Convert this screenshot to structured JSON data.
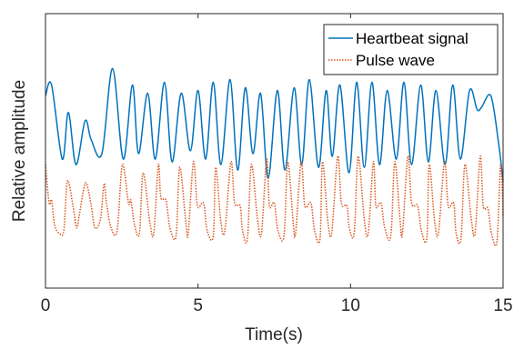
{
  "chart_data": {
    "type": "line",
    "xlabel": "Time(s)",
    "ylabel": "Relative amplitude",
    "xlim": [
      0,
      15
    ],
    "ylim": [
      0,
      1
    ],
    "xticks": [
      0,
      5,
      10,
      15
    ],
    "xtick_labels": [
      "0",
      "5",
      "10",
      "15"
    ],
    "grid": false,
    "legend_position": "top-right",
    "series": [
      {
        "name": "Heartbeat signal",
        "color": "#0072BD",
        "style": "solid",
        "x": [
          0,
          0.2,
          0.55,
          0.75,
          1.0,
          1.3,
          1.5,
          1.85,
          2.2,
          2.55,
          2.85,
          3.05,
          3.35,
          3.6,
          3.9,
          4.15,
          4.45,
          4.75,
          5.0,
          5.25,
          5.5,
          5.75,
          6.05,
          6.3,
          6.55,
          6.8,
          7.05,
          7.3,
          7.6,
          7.85,
          8.15,
          8.4,
          8.65,
          8.95,
          9.2,
          9.4,
          9.65,
          9.95,
          10.2,
          10.45,
          10.7,
          10.95,
          11.2,
          11.5,
          11.75,
          12.0,
          12.3,
          12.55,
          12.8,
          13.1,
          13.35,
          13.6,
          13.9,
          14.15,
          14.3,
          14.6,
          14.85,
          15.0
        ],
        "y": [
          0.7,
          0.74,
          0.47,
          0.64,
          0.45,
          0.61,
          0.54,
          0.49,
          0.8,
          0.47,
          0.74,
          0.49,
          0.71,
          0.47,
          0.75,
          0.46,
          0.71,
          0.5,
          0.72,
          0.47,
          0.75,
          0.45,
          0.76,
          0.43,
          0.73,
          0.49,
          0.71,
          0.4,
          0.72,
          0.43,
          0.73,
          0.45,
          0.76,
          0.44,
          0.72,
          0.48,
          0.74,
          0.42,
          0.75,
          0.44,
          0.75,
          0.45,
          0.72,
          0.47,
          0.75,
          0.45,
          0.74,
          0.46,
          0.72,
          0.45,
          0.74,
          0.47,
          0.72,
          0.65,
          0.66,
          0.7,
          0.53,
          0.39
        ]
      },
      {
        "name": "Pulse wave",
        "color": "#D95319",
        "style": "dotted",
        "x": [
          0,
          0.12,
          0.2,
          0.3,
          0.45,
          0.6,
          0.72,
          0.9,
          1.02,
          1.1,
          1.25,
          1.35,
          1.5,
          1.62,
          1.8,
          1.92,
          2.0,
          2.15,
          2.35,
          2.52,
          2.72,
          2.8,
          2.92,
          3.08,
          3.2,
          3.42,
          3.55,
          3.7,
          3.78,
          3.95,
          4.08,
          4.28,
          4.4,
          4.6,
          4.68,
          4.85,
          4.98,
          5.18,
          5.3,
          5.5,
          5.58,
          5.75,
          5.88,
          6.08,
          6.2,
          6.38,
          6.46,
          6.62,
          6.75,
          6.95,
          7.08,
          7.25,
          7.34,
          7.5,
          7.62,
          7.82,
          7.94,
          8.12,
          8.2,
          8.38,
          8.5,
          8.7,
          8.82,
          9.0,
          9.08,
          9.25,
          9.38,
          9.58,
          9.7,
          9.88,
          9.96,
          10.12,
          10.25,
          10.45,
          10.58,
          10.75,
          10.83,
          11.0,
          11.12,
          11.32,
          11.45,
          11.62,
          11.7,
          11.88,
          12.0,
          12.2,
          12.32,
          12.5,
          12.58,
          12.75,
          12.88,
          13.08,
          13.2,
          13.38,
          13.46,
          13.62,
          13.75,
          13.95,
          14.08,
          14.25,
          14.35,
          14.5,
          14.62,
          14.8,
          14.92,
          15.0
        ],
        "y": [
          0.45,
          0.31,
          0.32,
          0.23,
          0.2,
          0.21,
          0.39,
          0.3,
          0.22,
          0.26,
          0.36,
          0.38,
          0.3,
          0.22,
          0.25,
          0.38,
          0.31,
          0.22,
          0.21,
          0.45,
          0.31,
          0.32,
          0.23,
          0.2,
          0.42,
          0.24,
          0.2,
          0.45,
          0.33,
          0.32,
          0.22,
          0.19,
          0.44,
          0.24,
          0.2,
          0.46,
          0.3,
          0.31,
          0.21,
          0.19,
          0.44,
          0.24,
          0.21,
          0.46,
          0.31,
          0.3,
          0.21,
          0.18,
          0.45,
          0.25,
          0.2,
          0.47,
          0.3,
          0.31,
          0.21,
          0.19,
          0.46,
          0.24,
          0.2,
          0.46,
          0.3,
          0.31,
          0.21,
          0.18,
          0.46,
          0.25,
          0.2,
          0.48,
          0.31,
          0.3,
          0.22,
          0.2,
          0.48,
          0.25,
          0.2,
          0.46,
          0.3,
          0.31,
          0.22,
          0.19,
          0.46,
          0.25,
          0.2,
          0.48,
          0.31,
          0.3,
          0.21,
          0.18,
          0.45,
          0.25,
          0.2,
          0.46,
          0.3,
          0.31,
          0.2,
          0.18,
          0.45,
          0.26,
          0.2,
          0.48,
          0.3,
          0.29,
          0.2,
          0.17,
          0.45,
          0.26
        ]
      }
    ]
  }
}
